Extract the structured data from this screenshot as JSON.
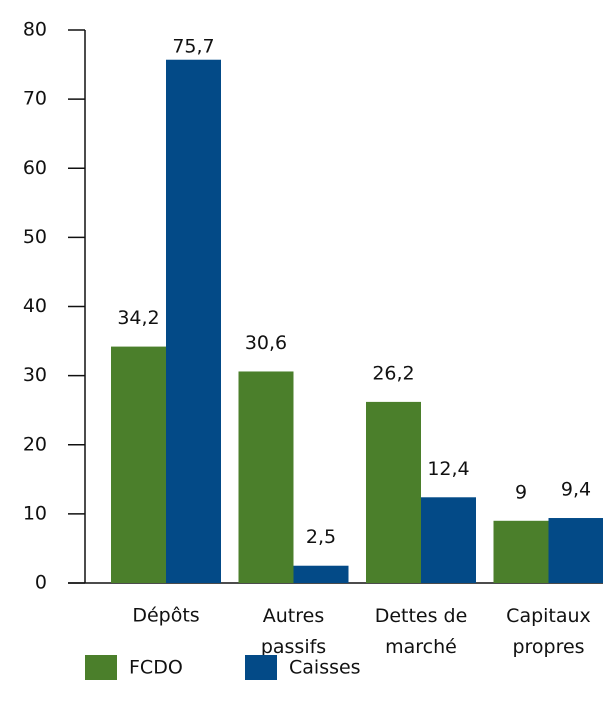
{
  "chart_data": {
    "type": "bar",
    "categories": [
      "Dépôts",
      "Autres passifs",
      "Dettes de marché",
      "Capitaux propres"
    ],
    "series": [
      {
        "name": "FCDO",
        "color": "#4b7f2b",
        "values": [
          34.2,
          30.6,
          26.2,
          9
        ],
        "value_labels": [
          "34,2",
          "30,6",
          "26,2",
          "9"
        ]
      },
      {
        "name": "Caisses",
        "color": "#034a87",
        "values": [
          75.7,
          2.5,
          12.4,
          9.4
        ],
        "value_labels": [
          "75,7",
          "2,5",
          "12,4",
          "9,4"
        ]
      }
    ],
    "ylim": [
      0,
      80
    ],
    "yticks": [
      0,
      10,
      20,
      30,
      40,
      50,
      60,
      70,
      80
    ],
    "legend": "bottom"
  }
}
